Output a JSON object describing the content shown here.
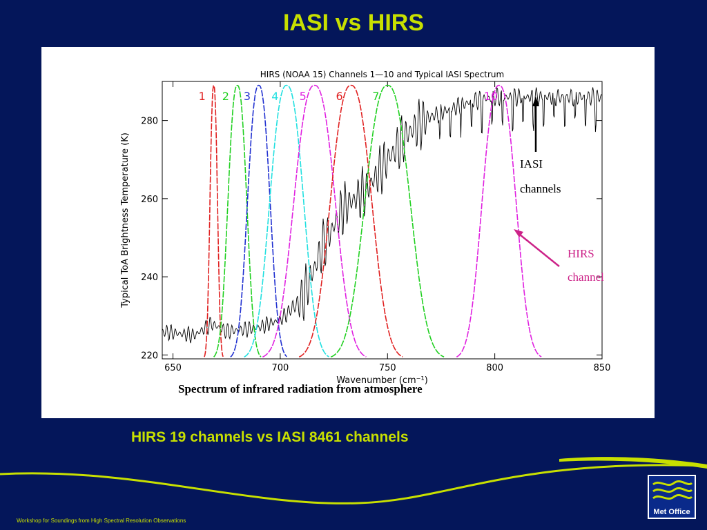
{
  "slide": {
    "title": "IASI vs HIRS",
    "subtitle": "HIRS 19 channels vs IASI 8461 channels",
    "footer": "Workshop for Soundings from High Spectral Resolution Observations",
    "logo_text": "Met Office"
  },
  "annotations": {
    "iasi_line1": "IASI",
    "iasi_line2": "channels",
    "hirs_line1": "HIRS",
    "hirs_line2": "channel",
    "caption": "Spectrum of infrared radiation from atmosphere"
  },
  "colors": {
    "background": "#04165a",
    "accent": "#c8e000",
    "hirs_annotation": "#cc2288"
  },
  "chart_data": {
    "type": "line",
    "title": "HIRS (NOAA 15) Channels 1—10 and Typical IASI Spectrum",
    "xlabel": "Wavenumber (cm⁻¹)",
    "ylabel": "Typical ToA Brightness Temperature (K)",
    "xlim": [
      645,
      850
    ],
    "ylim": [
      219,
      290
    ],
    "xticks": [
      650,
      700,
      750,
      800,
      850
    ],
    "yticks": [
      220,
      240,
      260,
      280
    ],
    "hirs_channels": [
      {
        "label": "1",
        "color": "#e02020",
        "center": 669,
        "halfwidth": 2
      },
      {
        "label": "2",
        "color": "#20d020",
        "center": 680,
        "halfwidth": 5
      },
      {
        "label": "3",
        "color": "#2030d0",
        "center": 690,
        "halfwidth": 6
      },
      {
        "label": "4",
        "color": "#20e0e0",
        "center": 703,
        "halfwidth": 9
      },
      {
        "label": "5",
        "color": "#e020e0",
        "center": 716,
        "halfwidth": 11
      },
      {
        "label": "6",
        "color": "#e02020",
        "center": 733,
        "halfwidth": 11
      },
      {
        "label": "7",
        "color": "#20d020",
        "center": 750,
        "halfwidth": 12
      },
      {
        "label": "10",
        "color": "#e020e0",
        "center": 802,
        "halfwidth": 9
      }
    ],
    "iasi_spectrum_envelope": {
      "x": [
        645,
        660,
        668,
        675,
        690,
        700,
        710,
        720,
        730,
        740,
        750,
        760,
        770,
        780,
        790,
        800,
        820,
        850
      ],
      "y": [
        226,
        225,
        228,
        226,
        227,
        229,
        234,
        248,
        258,
        262,
        270,
        277,
        281,
        283,
        285,
        286,
        286,
        286
      ]
    }
  }
}
